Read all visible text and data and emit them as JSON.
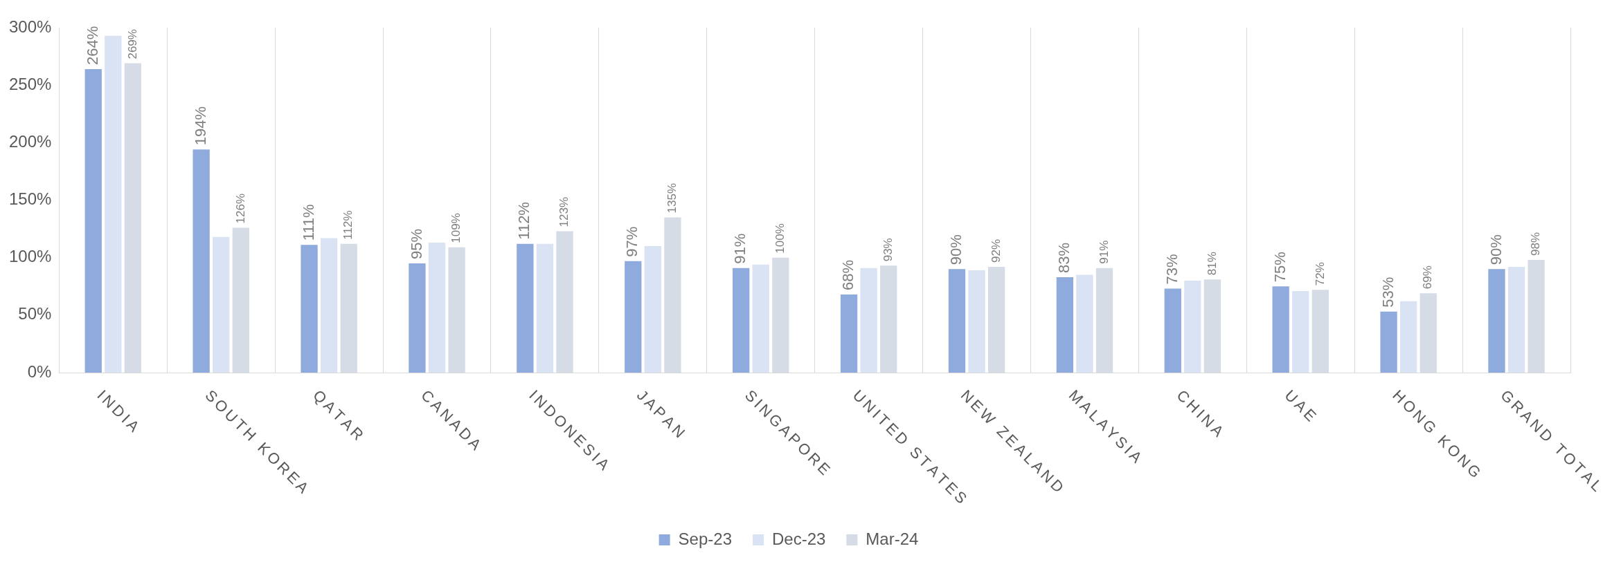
{
  "chart_data": {
    "type": "bar",
    "categories": [
      "INDIA",
      "SOUTH KOREA",
      "QATAR",
      "CANADA",
      "INDONESIA",
      "JAPAN",
      "SINGAPORE",
      "UNITED STATES",
      "NEW ZEALAND",
      "MALAYSIA",
      "CHINA",
      "UAE",
      "HONG KONG",
      "GRAND TOTAL"
    ],
    "series": [
      {
        "name": "Sep-23",
        "color": "#8faadc",
        "values": [
          264,
          194,
          111,
          95,
          112,
          97,
          91,
          68,
          90,
          83,
          73,
          75,
          53,
          90
        ],
        "value_labels": [
          "264%",
          "194%",
          "111%",
          "95%",
          "112%",
          "97%",
          "91%",
          "68%",
          "90%",
          "83%",
          "73%",
          "75%",
          "53%",
          "90%"
        ]
      },
      {
        "name": "Dec-23",
        "color": "#dae3f3",
        "values": [
          293,
          118,
          117,
          113,
          112,
          110,
          94,
          91,
          89,
          85,
          80,
          71,
          62,
          92
        ]
      },
      {
        "name": "Mar-24",
        "color": "#d6dce5",
        "values": [
          269,
          126,
          112,
          109,
          123,
          135,
          100,
          93,
          92,
          91,
          81,
          72,
          69,
          98
        ],
        "value_labels": [
          "269%",
          "126%",
          "112%",
          "109%",
          "123%",
          "135%",
          "100%",
          "93%",
          "92%",
          "91%",
          "81%",
          "72%",
          "69%",
          "98%"
        ]
      }
    ],
    "ylim": [
      0,
      300
    ],
    "yticks": [
      {
        "value": 0,
        "label": "0%"
      },
      {
        "value": 50,
        "label": "50%"
      },
      {
        "value": 100,
        "label": "100%"
      },
      {
        "value": 150,
        "label": "150%"
      },
      {
        "value": 200,
        "label": "200%"
      },
      {
        "value": 250,
        "label": "250%"
      },
      {
        "value": 300,
        "label": "300%"
      }
    ],
    "grid": "x",
    "legend": "bottom"
  }
}
